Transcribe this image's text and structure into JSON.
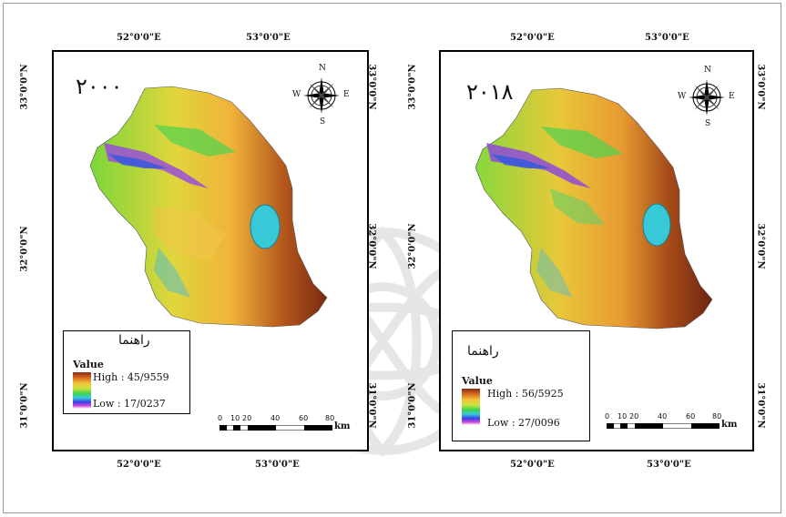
{
  "panels": [
    {
      "year": "٢٠٠٠",
      "lon_top_left": "52°0'0\"E",
      "lon_top_right": "53°0'0\"E",
      "lon_bottom_left": "52°0'0\"E",
      "lon_bottom_right": "53°0'0\"E",
      "lat_33": "33°0'0\"N",
      "lat_32": "32°0'0\"N",
      "lat_31": "31°0'0\"N",
      "legend_title": "راهنما",
      "legend_value": "Value",
      "legend_high": "High : 45/9559",
      "legend_low": "Low : 17/0237",
      "scale_ticks": [
        "0",
        "10",
        "20",
        "40",
        "60",
        "80"
      ],
      "scale_unit": "km",
      "compass": {
        "n": "N",
        "s": "S",
        "e": "E",
        "w": "W"
      }
    },
    {
      "year": "٢٠١٨",
      "lon_top_left": "52°0'0\"E",
      "lon_top_right": "53°0'0\"E",
      "lon_bottom_left": "52°0'0\"E",
      "lon_bottom_right": "53°0'0\"E",
      "lat_33": "33°0'0\"N",
      "lat_32": "32°0'0\"N",
      "lat_31": "31°0'0\"N",
      "legend_title": "راهنما",
      "legend_value": "Value",
      "legend_high": "High : 56/5925",
      "legend_low": "Low : 27/0096",
      "scale_ticks": [
        "0",
        "10",
        "20",
        "40",
        "60",
        "80"
      ],
      "scale_unit": "km",
      "compass": {
        "n": "N",
        "s": "S",
        "e": "E",
        "w": "W"
      }
    }
  ],
  "colors": {
    "high": "#8b2b12",
    "mid_high": "#f3c23a",
    "mid": "#41d24d",
    "mid_low": "#38c9d8",
    "low": "#d04ad8",
    "lake": "#38c9d8"
  }
}
